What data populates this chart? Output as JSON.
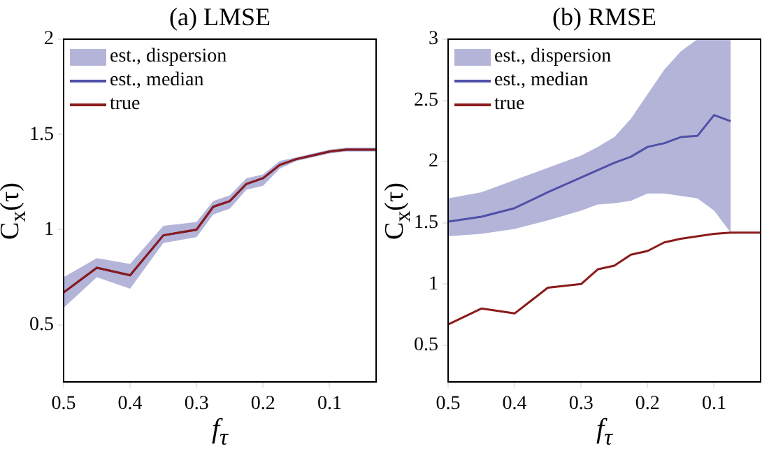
{
  "chart_data": [
    {
      "type": "line",
      "title": "(a) LMSE",
      "xlabel": "f$_{τ}$",
      "ylabel": "C$_{x}$(τ)",
      "annotations": [
        "est., dispersion"
      ],
      "x": [
        0.5,
        0.45,
        0.4,
        0.35,
        0.3,
        0.275,
        0.25,
        0.225,
        0.2,
        0.175,
        0.15,
        0.125,
        0.1,
        0.075,
        0.05,
        0.03
      ],
      "xlim": [
        0.5,
        0.03
      ],
      "xticks": [
        0.5,
        0.4,
        0.3,
        0.2,
        0.1
      ],
      "ylim": [
        0.2,
        2
      ],
      "yticks": [
        0.5,
        1,
        1.5,
        2
      ],
      "legend": "top left",
      "grid": false,
      "series": [
        {
          "name": "est., median",
          "color": "#5050a8",
          "values": [
            0.67,
            0.8,
            0.76,
            0.97,
            1.0,
            1.12,
            1.15,
            1.24,
            1.27,
            1.34,
            1.37,
            1.39,
            1.41,
            1.42,
            1.42,
            1.42
          ],
          "lower": [
            0.59,
            0.75,
            0.69,
            0.93,
            0.96,
            1.08,
            1.11,
            1.21,
            1.23,
            1.32,
            1.36,
            1.38,
            1.4,
            1.41,
            1.41,
            1.41
          ],
          "upper": [
            0.75,
            0.85,
            0.82,
            1.02,
            1.04,
            1.15,
            1.18,
            1.27,
            1.29,
            1.36,
            1.38,
            1.4,
            1.42,
            1.43,
            1.43,
            1.43
          ]
        },
        {
          "name": "true",
          "color": "#8b1a1a",
          "values": [
            0.67,
            0.8,
            0.76,
            0.97,
            1.0,
            1.12,
            1.15,
            1.24,
            1.27,
            1.34,
            1.37,
            1.39,
            1.41,
            1.42,
            1.42,
            1.42
          ]
        }
      ]
    },
    {
      "type": "line",
      "title": "(b) RMSE",
      "xlabel": "f$_{τ}$",
      "ylabel": "C$_{x}$(τ)",
      "annotations": [
        "est., dispersion"
      ],
      "x": [
        0.5,
        0.45,
        0.4,
        0.35,
        0.3,
        0.275,
        0.25,
        0.225,
        0.2,
        0.175,
        0.15,
        0.125,
        0.1,
        0.075,
        0.05,
        0.03
      ],
      "xlim": [
        0.5,
        0.03
      ],
      "xticks": [
        0.5,
        0.4,
        0.3,
        0.2,
        0.1
      ],
      "ylim": [
        0.2,
        3
      ],
      "yticks": [
        0.5,
        1,
        1.5,
        2,
        2.5,
        3
      ],
      "legend": "top left",
      "grid": false,
      "series": [
        {
          "name": "est., median",
          "color": "#5050a8",
          "values": [
            1.51,
            1.55,
            1.62,
            1.75,
            1.87,
            1.93,
            1.99,
            2.04,
            2.12,
            2.15,
            2.2,
            2.21,
            2.38,
            2.33,
            null,
            null
          ],
          "lower": [
            1.39,
            1.41,
            1.45,
            1.52,
            1.6,
            1.65,
            1.66,
            1.68,
            1.74,
            1.74,
            1.72,
            1.7,
            1.6,
            1.42,
            null,
            null
          ],
          "upper": [
            1.7,
            1.75,
            1.85,
            1.95,
            2.05,
            2.12,
            2.2,
            2.35,
            2.55,
            2.75,
            2.9,
            3.0,
            3.0,
            3.0,
            null,
            null
          ]
        },
        {
          "name": "true",
          "color": "#8b1a1a",
          "values": [
            0.67,
            0.8,
            0.76,
            0.97,
            1.0,
            1.12,
            1.15,
            1.24,
            1.27,
            1.34,
            1.37,
            1.39,
            1.41,
            1.42,
            1.42,
            1.42
          ]
        }
      ]
    }
  ]
}
